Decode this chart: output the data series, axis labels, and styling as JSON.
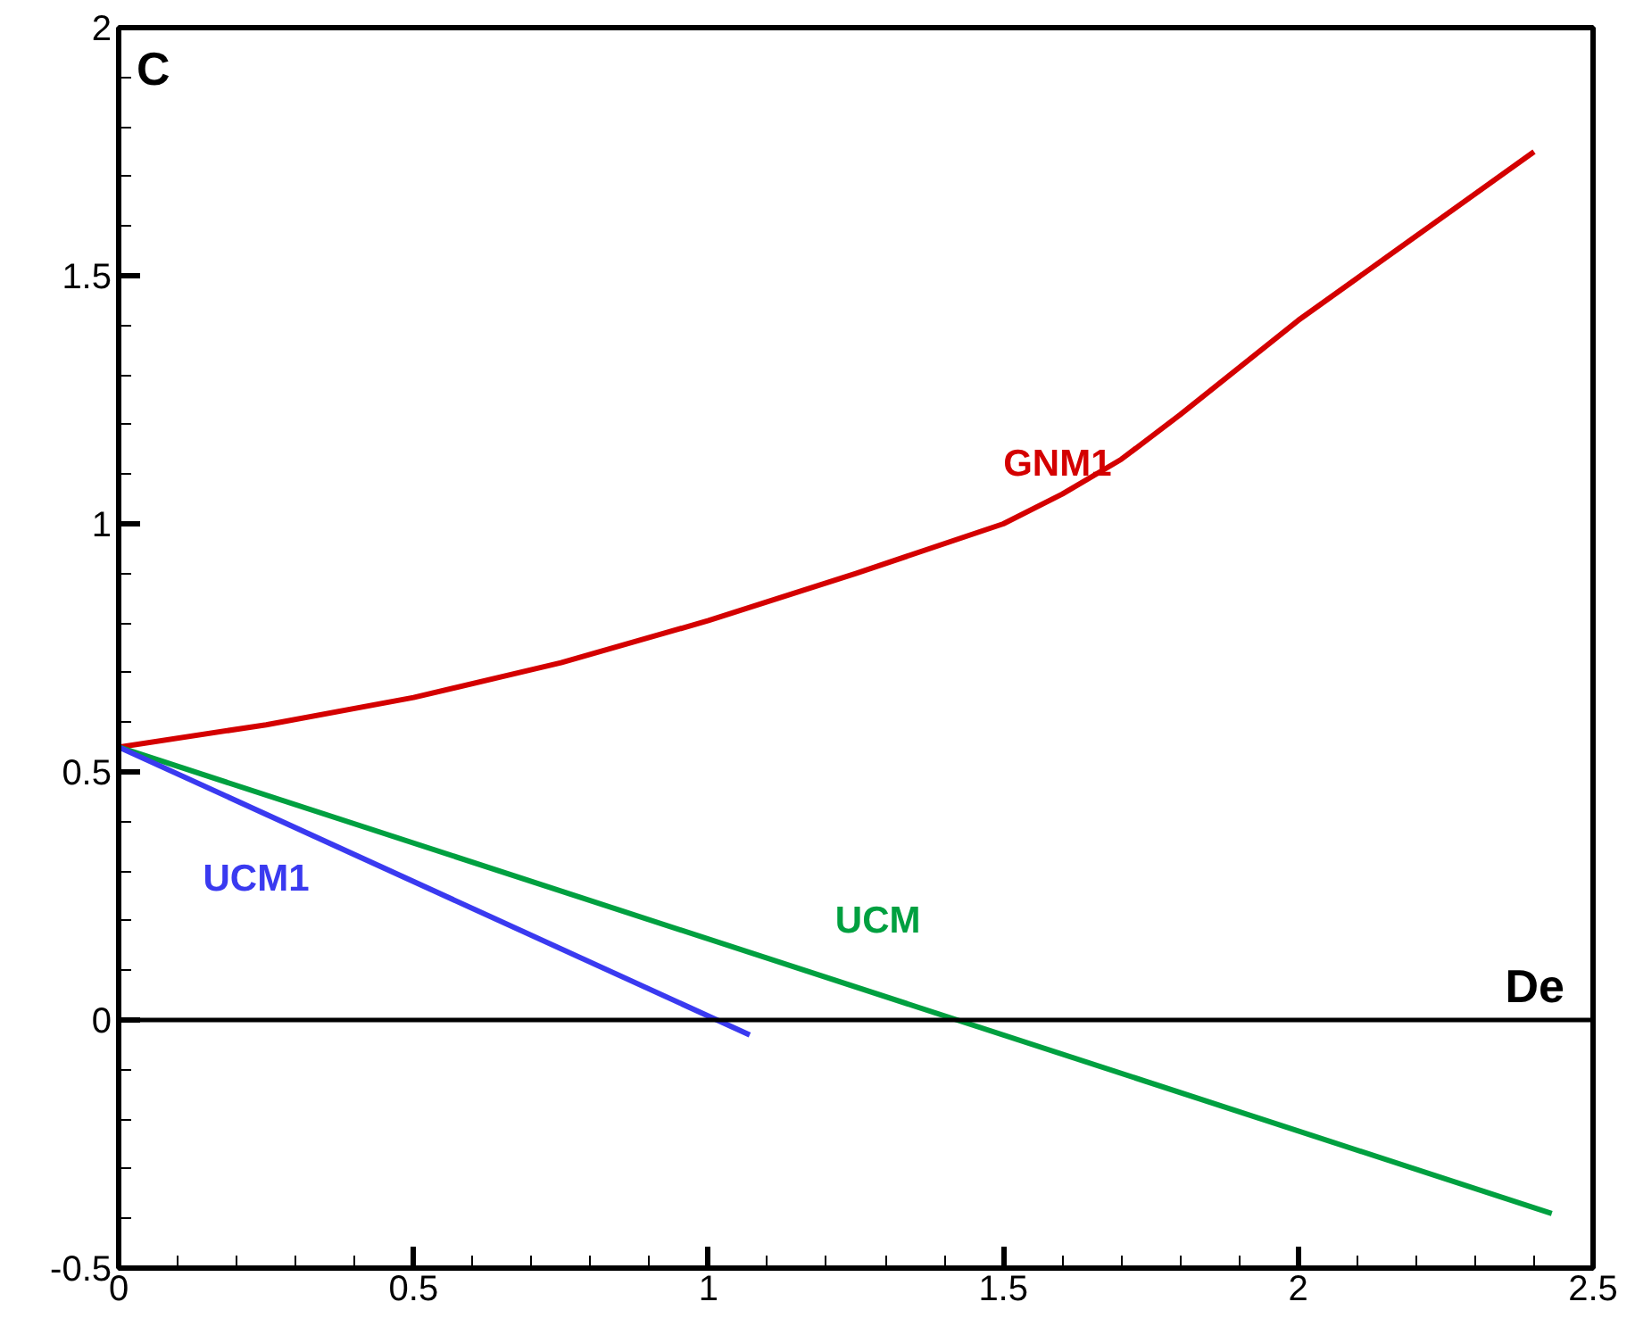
{
  "chart_data": {
    "type": "line",
    "xlabel": "De",
    "ylabel": "C",
    "xlim": [
      0,
      2.5
    ],
    "ylim": [
      -0.5,
      2
    ],
    "xticks": [
      0,
      0.5,
      1,
      1.5,
      2,
      2.5
    ],
    "yticks": [
      {
        "value": -0.5,
        "label": "-0.5"
      },
      0,
      0.5,
      1,
      1.5,
      2
    ],
    "grid": false,
    "marker": "none",
    "line_style": "solid",
    "ref_lines": [
      {
        "axis": "y",
        "value": 0,
        "color": "#000000"
      }
    ],
    "series": [
      {
        "name": "GNM1",
        "color": "#d40000",
        "x": [
          0,
          0.25,
          0.5,
          0.75,
          1,
          1.25,
          1.5,
          1.6,
          1.7,
          1.8,
          2,
          2.2,
          2.4
        ],
        "values": [
          0.55,
          0.595,
          0.65,
          0.72,
          0.805,
          0.9,
          1.0,
          1.06,
          1.13,
          1.22,
          1.41,
          1.58,
          1.75
        ]
      },
      {
        "name": "UCM",
        "color": "#00a040",
        "x": [
          0,
          2.43
        ],
        "values": [
          0.55,
          -0.39
        ]
      },
      {
        "name": "UCM1",
        "color": "#3a3af0",
        "x": [
          0,
          1.07
        ],
        "values": [
          0.55,
          -0.03
        ]
      }
    ]
  }
}
